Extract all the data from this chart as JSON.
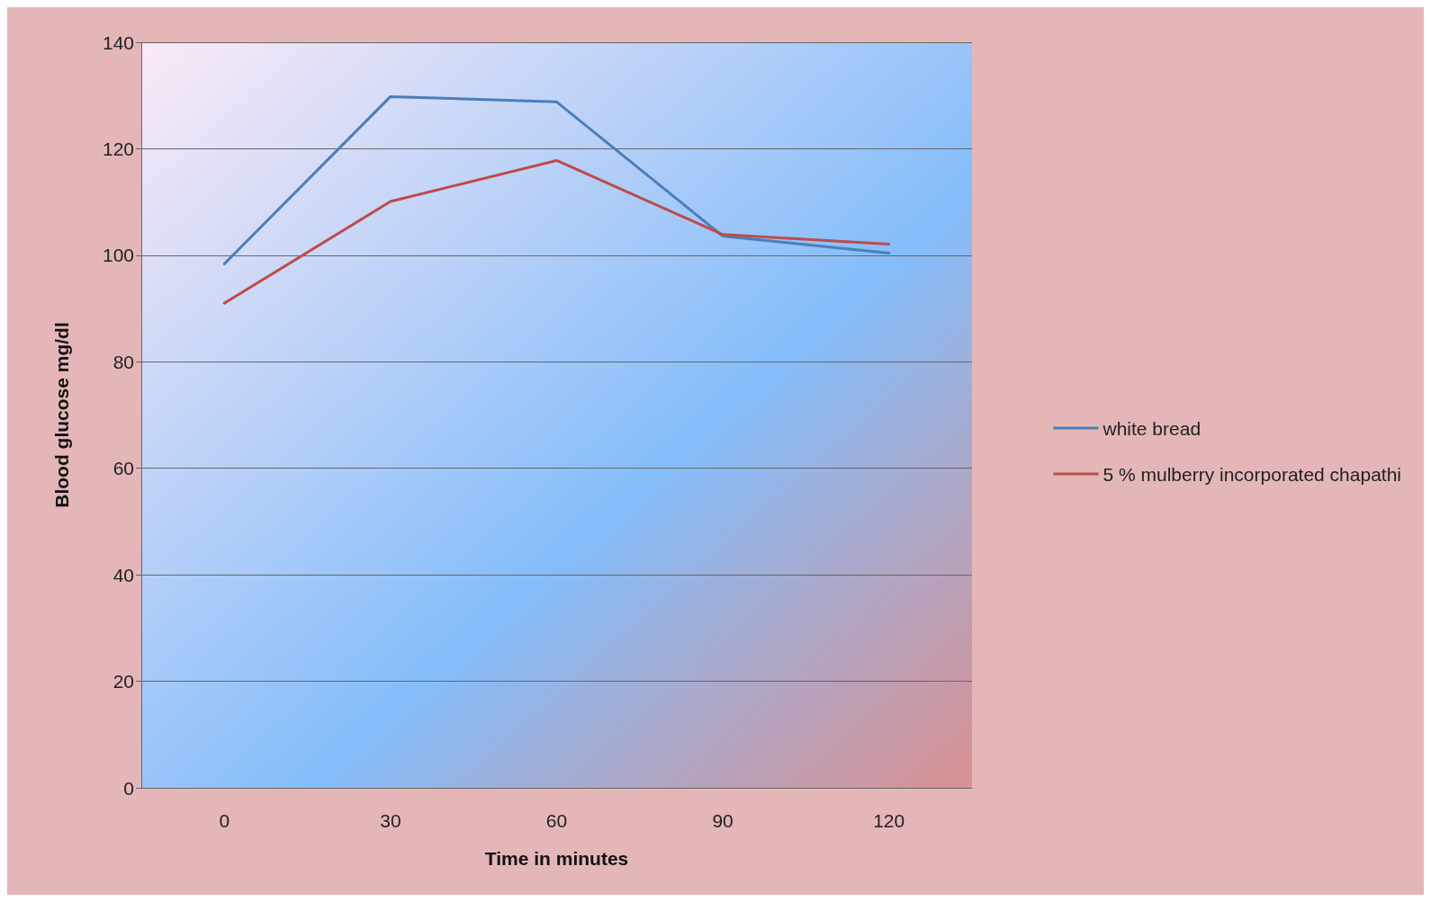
{
  "chart_data": {
    "type": "line",
    "xlabel": "Time in minutes",
    "ylabel": "Blood glucose mg/dl",
    "categories": [
      "0",
      "30",
      "60",
      "90",
      "120"
    ],
    "series": [
      {
        "name": "white bread",
        "color": "#4a7ebb",
        "values": [
          98.4,
          129.8,
          128.8,
          103.6,
          100.4
        ]
      },
      {
        "name": "5 % mulberry incorporated chapathi",
        "color": "#be4b48",
        "values": [
          91,
          110.1,
          117.8,
          103.9,
          102.1
        ]
      }
    ],
    "ylim": [
      0,
      140
    ],
    "yticks": [
      0,
      20,
      40,
      60,
      80,
      100,
      120,
      140
    ],
    "grid": "y",
    "legend": "right",
    "marker": "none",
    "line_style": "solid"
  }
}
